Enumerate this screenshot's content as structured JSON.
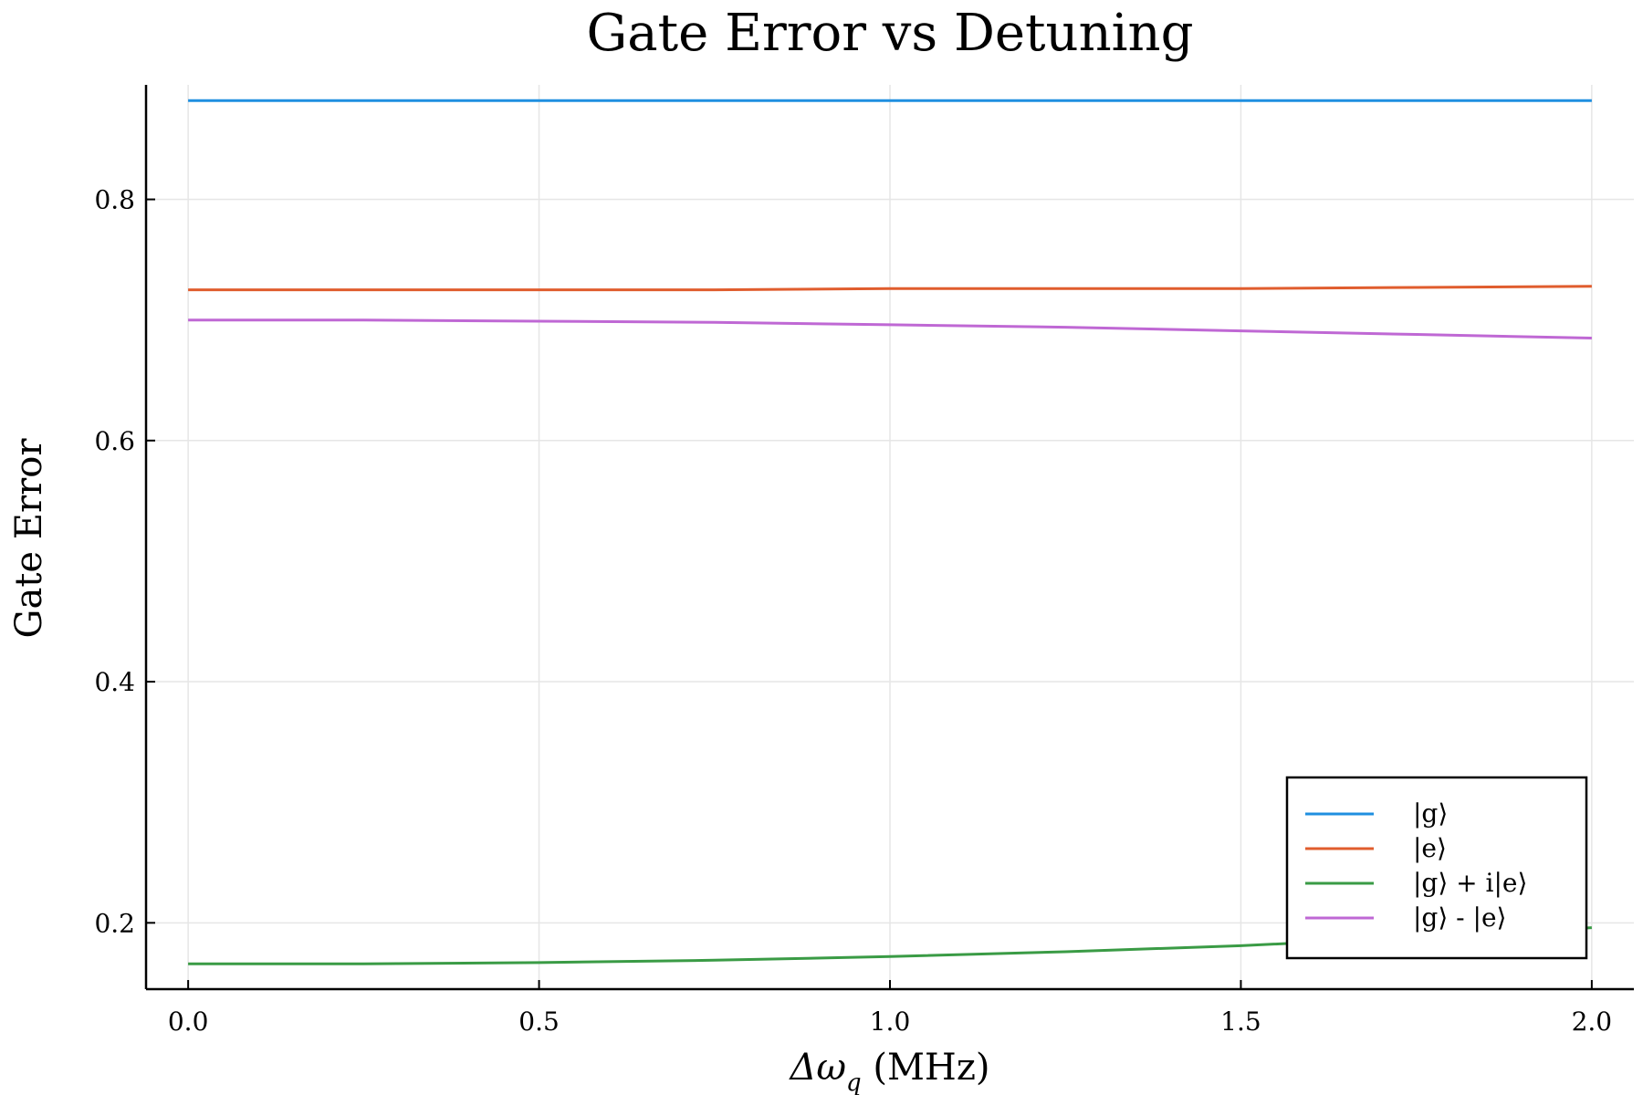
{
  "chart_data": {
    "type": "line",
    "title": "Gate Error vs Detuning",
    "xlabel": "Δω_q (MHz)",
    "xlabel_main": "Δω",
    "xlabel_sub": "q",
    "xlabel_unit": " (MHz)",
    "ylabel": "Gate Error",
    "xlim": [
      -0.06,
      2.06
    ],
    "ylim": [
      0.145,
      0.895
    ],
    "xticks": [
      0.0,
      0.5,
      1.0,
      1.5,
      2.0
    ],
    "xtick_labels": [
      "0.0",
      "0.5",
      "1.0",
      "1.5",
      "2.0"
    ],
    "yticks": [
      0.2,
      0.4,
      0.6,
      0.8
    ],
    "ytick_labels": [
      "0.2",
      "0.4",
      "0.6",
      "0.8"
    ],
    "grid": true,
    "legend_position": "bottom-right",
    "x": [
      0.0,
      0.25,
      0.5,
      0.75,
      1.0,
      1.25,
      1.5,
      1.75,
      2.0
    ],
    "series": [
      {
        "name": "|g⟩",
        "color": "#1f8fe0",
        "values": [
          0.882,
          0.882,
          0.882,
          0.882,
          0.882,
          0.882,
          0.882,
          0.882,
          0.882
        ]
      },
      {
        "name": "|e⟩",
        "color": "#e05d2e",
        "values": [
          0.725,
          0.725,
          0.725,
          0.725,
          0.726,
          0.726,
          0.726,
          0.727,
          0.728
        ]
      },
      {
        "name": "|g⟩ + i|e⟩",
        "color": "#3a9b45",
        "values": [
          0.166,
          0.166,
          0.167,
          0.169,
          0.172,
          0.176,
          0.181,
          0.188,
          0.196
        ]
      },
      {
        "name": "|g⟩ - |e⟩",
        "color": "#bf68d4",
        "values": [
          0.7,
          0.7,
          0.699,
          0.698,
          0.696,
          0.694,
          0.691,
          0.688,
          0.685
        ]
      }
    ]
  }
}
